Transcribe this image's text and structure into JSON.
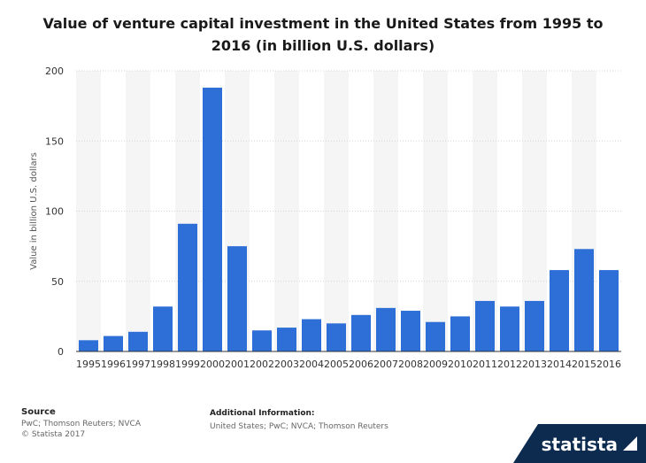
{
  "title": "Value of venture capital investment in the United States from 1995 to 2016 (in billion U.S. dollars)",
  "chart_data": {
    "type": "bar",
    "categories": [
      "1995",
      "1996",
      "1997",
      "1998",
      "1999",
      "2000",
      "2001",
      "2002",
      "2003",
      "2004",
      "2005",
      "2006",
      "2007",
      "2008",
      "2009",
      "2010",
      "2011",
      "2012",
      "2013",
      "2014",
      "2015",
      "2016"
    ],
    "values": [
      8,
      11,
      14,
      32,
      91,
      188,
      75,
      15,
      17,
      23,
      20,
      26,
      31,
      29,
      21,
      25,
      36,
      32,
      36,
      58,
      73,
      58
    ],
    "ylabel": "Value in billion U.S. dollars",
    "ylim": [
      0,
      200
    ],
    "yticks": [
      0,
      50,
      100,
      150,
      200
    ],
    "bar_color": "#2d6fd6",
    "grid": true
  },
  "source": {
    "heading": "Source",
    "line1": "PwC; Thomson Reuters; NVCA",
    "line2": "© Statista 2017"
  },
  "additional": {
    "heading": "Additional Information:",
    "text": "United States; PwC; NVCA; Thomson Reuters"
  },
  "brand": {
    "name": "statista",
    "icon": "statista-logo-icon"
  }
}
